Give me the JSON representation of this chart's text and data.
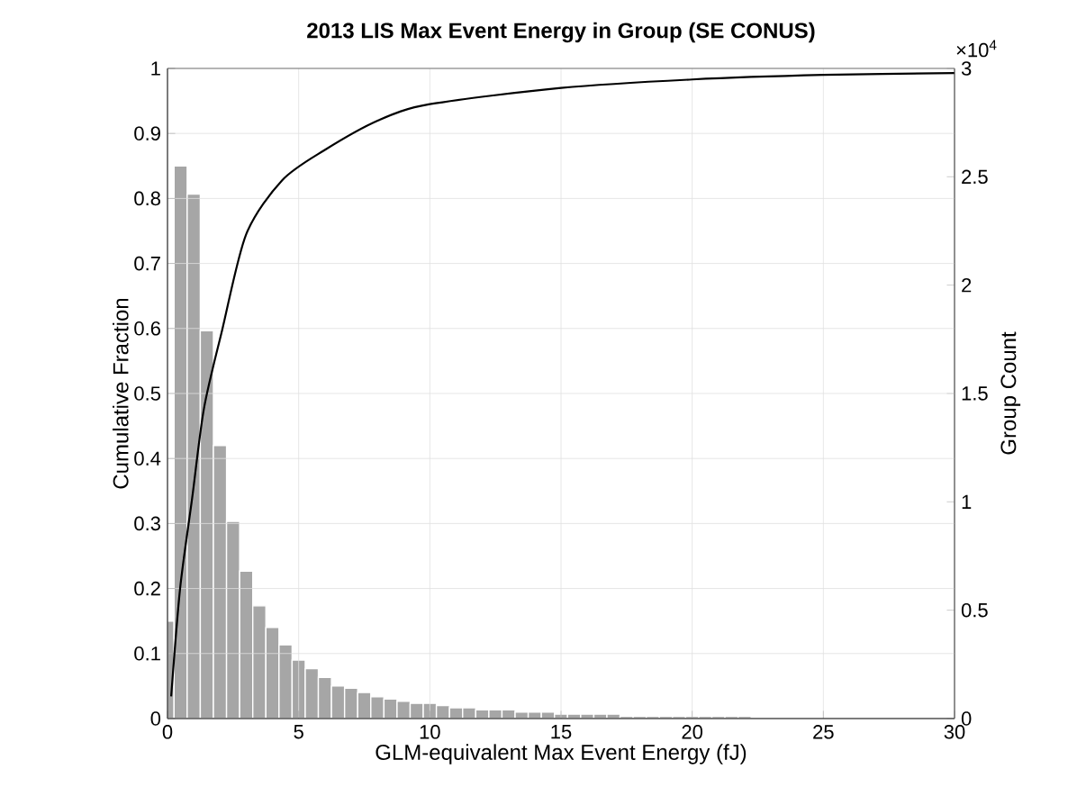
{
  "chart_data": {
    "type": "histogram",
    "title": "2013 LIS Max Event Energy in Group (SE CONUS)",
    "xlabel": "GLM-equivalent Max Event Energy (fJ)",
    "ylabel": "Cumulative Fraction",
    "y2label": "Group Count",
    "annotations": [
      "×10$^{4}$"
    ],
    "xlim": [
      0,
      30
    ],
    "xticks": [
      0,
      5,
      10,
      15,
      20,
      25,
      30
    ],
    "ylim": [
      0,
      1
    ],
    "yticks": [
      0,
      0.1,
      0.2,
      0.3,
      0.4,
      0.5,
      0.6,
      0.7,
      0.8,
      0.9,
      1
    ],
    "y2lim": [
      0,
      3
    ],
    "y2ticks": [
      0,
      0.5,
      1,
      1.5,
      2,
      2.5,
      3
    ],
    "grid": true,
    "series": [
      {
        "axis": "y2",
        "color": "#a6a6a6",
        "bins": [
          -0.25,
          0.25,
          0.75,
          1.25,
          1.75,
          2.25,
          2.75,
          3.25,
          3.75,
          4.25,
          4.75,
          5.25,
          5.75,
          6.25,
          6.75,
          7.25,
          7.75,
          8.25,
          8.75,
          9.25,
          9.75,
          10.25,
          10.75,
          11.25,
          11.75,
          12.25,
          12.75,
          13.25,
          13.75,
          14.25,
          14.75,
          15.25,
          15.75,
          16.25,
          16.75,
          17.25,
          17.75,
          18.25,
          18.75,
          19.25,
          19.75,
          20.25,
          20.75,
          21.25,
          21.75,
          22.25
        ],
        "values": [
          0.45,
          2.55,
          2.42,
          1.79,
          1.26,
          0.91,
          0.68,
          0.52,
          0.42,
          0.34,
          0.27,
          0.23,
          0.19,
          0.15,
          0.14,
          0.12,
          0.1,
          0.09,
          0.08,
          0.07,
          0.07,
          0.06,
          0.05,
          0.05,
          0.04,
          0.04,
          0.04,
          0.03,
          0.03,
          0.03,
          0.02,
          0.02,
          0.02,
          0.02,
          0.02,
          0.01,
          0.01,
          0.01,
          0.01,
          0.01,
          0.01,
          0.01,
          0.01,
          0.01,
          0.01
        ]
      },
      {
        "type": "line",
        "axis": "y",
        "color": "#000000",
        "x": [
          0.14,
          0.48,
          0.94,
          1.39,
          2.08,
          3.0,
          4.37,
          5.97,
          8.03,
          10,
          15,
          20,
          25,
          30
        ],
        "values": [
          0.034,
          0.2,
          0.339,
          0.477,
          0.597,
          0.745,
          0.828,
          0.874,
          0.92,
          0.945,
          0.97,
          0.983,
          0.99,
          0.993
        ]
      }
    ]
  }
}
